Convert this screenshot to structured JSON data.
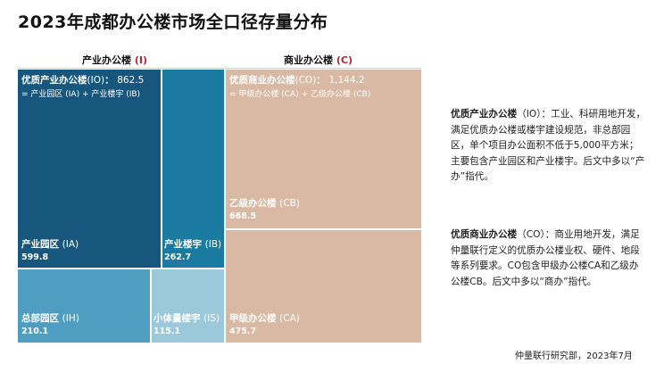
{
  "title": "2023年成都办公楼市场全口径存量分布",
  "groups": {
    "industrial": {
      "label": "产业办公楼",
      "code": "(I)"
    },
    "commercial": {
      "label": "商业办公楼",
      "code": "(C)"
    }
  },
  "chart_data": {
    "type": "treemap",
    "title": "2023年成都办公楼市场全口径存量分布",
    "tiles": [
      {
        "key": "IA",
        "label": "产业园区",
        "code": "(IA)",
        "value": 599.8,
        "value_text": "599.8",
        "group": "产业办公楼 (I)",
        "color": "#17577e"
      },
      {
        "key": "IB",
        "label": "产业楼宇",
        "code": "(IB)",
        "value": 262.7,
        "value_text": "262.7",
        "group": "产业办公楼 (I)",
        "color": "#1b7aa0"
      },
      {
        "key": "IH",
        "label": "总部园区",
        "code": "(IH)",
        "value": 210.1,
        "value_text": "210.1",
        "group": "产业办公楼 (I)",
        "color": "#4f9ec2"
      },
      {
        "key": "IS",
        "label": "小体量楼宇",
        "code": "(IS)",
        "value": 115.1,
        "value_text": "115.1",
        "group": "产业办公楼 (I)",
        "color": "#9cc8db"
      },
      {
        "key": "CB",
        "label": "乙级办公楼",
        "code": "(CB)",
        "value": 668.5,
        "value_text": "668.5",
        "group": "商业办公楼 (C)",
        "color": "#d9b9a3"
      },
      {
        "key": "CA",
        "label": "甲级办公楼",
        "code": "(CA)",
        "value": 475.7,
        "value_text": "475.7",
        "group": "商业办公楼 (C)",
        "color": "#d9b9a3"
      }
    ],
    "totals": [
      {
        "label": "优质产业办公楼",
        "code": "(IO)",
        "value": 862.5,
        "value_text": "862.5",
        "formula": "= 产业园区 (IA) + 产业楼宇 (IB)"
      },
      {
        "label": "优质商业办公楼",
        "code": "(CO)",
        "value": 1144.2,
        "value_text": "1,144.2",
        "formula": "= 甲级办公楼 (CA) + 乙级办公楼 (CB)"
      }
    ]
  },
  "definitions": [
    {
      "term": "优质产业办公楼",
      "code": "（IO）：",
      "text": "工业、科研用地开发，满足优质办公楼或楼宇建设规范，非总部园区，单个项目办公面积不低于5,000平方米；主要包含产业园区和产业楼宇。后文中多以“产办”指代。"
    },
    {
      "term": "优质商业办公楼",
      "code": "（CO）：",
      "text": "商业用地开发，满足仲量联行定义的优质办公楼业权、硬件、地段等系列要求。CO包含甲级办公楼CA和乙级办公楼CB。后文中多以“商办”指代。"
    }
  ],
  "source": "仲量联行研究部，2023年7月"
}
